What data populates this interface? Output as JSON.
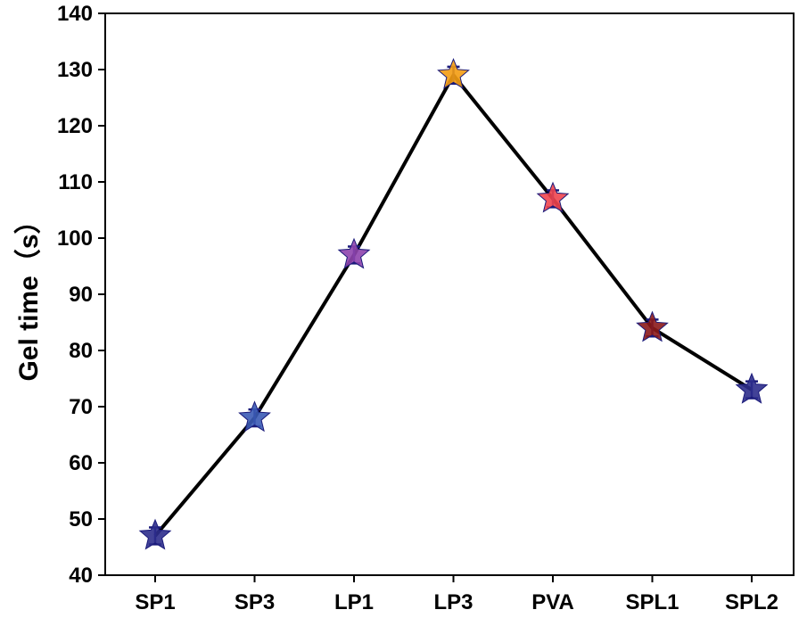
{
  "chart_data": {
    "type": "line",
    "title": "",
    "xlabel": "",
    "ylabel": "Gel time（s）",
    "categories": [
      "SP1",
      "SP3",
      "LP1",
      "LP3",
      "PVA",
      "SPL1",
      "SPL2"
    ],
    "values": [
      47,
      68,
      97,
      129,
      107,
      84,
      73
    ],
    "error": [
      1.5,
      1.5,
      1.5,
      1.5,
      1.5,
      1.5,
      1.5
    ],
    "marker_colors": [
      "#2e2e8c",
      "#3b5bb5",
      "#8e44ad",
      "#f39c12",
      "#f0454e",
      "#8b1a1a",
      "#2e2e8c"
    ],
    "errorbar_color": "#1a1a7a",
    "line_color": "#000000",
    "ylim": [
      40,
      140
    ],
    "yticks": [
      40,
      50,
      60,
      70,
      80,
      90,
      100,
      110,
      120,
      130,
      140
    ],
    "grid": false,
    "legend": "none"
  }
}
